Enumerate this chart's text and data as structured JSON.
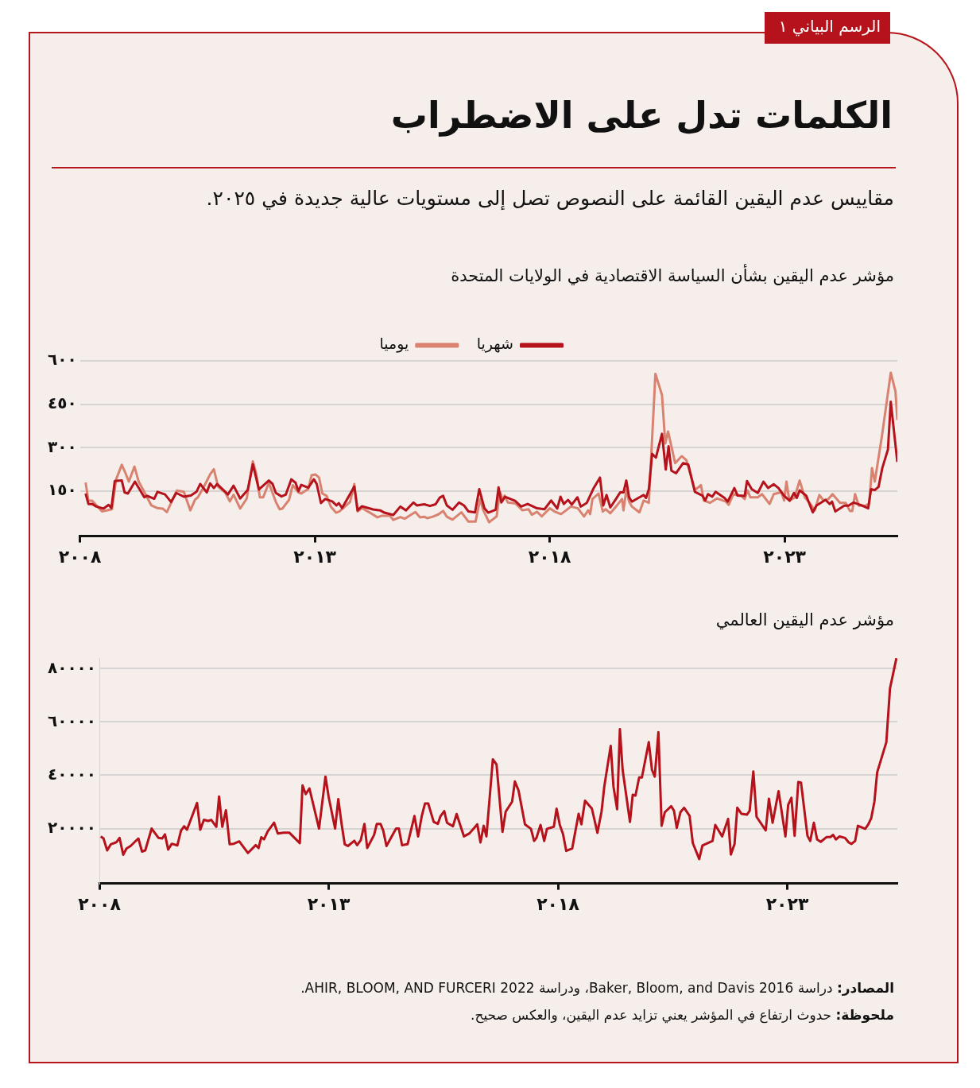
{
  "chart_data": [
    {
      "type": "line",
      "title": "الكلمات تدل على الاضطراب",
      "subtitle": "مقاييس عدم اليقين القائمة على النصوص تصل إلى مستويات عالية جديدة في ٢٠٢٥.",
      "annotations": [
        "الرسم البياني ١",
        "مؤشر عدم اليقين بشأن السياسة الاقتصادية في الولايات المتحدة"
      ],
      "xlim": [
        2008,
        2025.4
      ],
      "xticks": [
        {
          "value": 2008,
          "label": "٢٠٠٨"
        },
        {
          "value": 2013,
          "label": "٢٠١٣"
        },
        {
          "value": 2018,
          "label": "٢٠١٨"
        },
        {
          "value": 2023,
          "label": "٢٠٢٣"
        }
      ],
      "ylim": [
        -5,
        600
      ],
      "yticks": [
        {
          "value": 150,
          "label": "١٥٠"
        },
        {
          "value": 300,
          "label": "٣٠٠"
        },
        {
          "value": 450,
          "label": "٤٥٠"
        },
        {
          "value": 600,
          "label": "٦٠٠"
        }
      ],
      "grid": "y",
      "legend": "top",
      "series": [
        {
          "name": "شهريا",
          "color": "#b5121b",
          "x": [
            2008.12,
            2008.18,
            2008.26,
            2008.35,
            2008.5,
            2008.61,
            2008.67,
            2008.74,
            2008.89,
            2008.95,
            2009.02,
            2009.17,
            2009.37,
            2009.43,
            2009.58,
            2009.65,
            2009.81,
            2009.94,
            2010.05,
            2010.21,
            2010.36,
            2010.48,
            2010.56,
            2010.7,
            2010.77,
            2010.85,
            2010.92,
            2011.15,
            2011.27,
            2011.41,
            2011.57,
            2011.68,
            2011.81,
            2012.02,
            2012.1,
            2012.17,
            2012.29,
            2012.38,
            2012.5,
            2012.59,
            2012.65,
            2012.71,
            2012.86,
            2012.98,
            2013.04,
            2013.13,
            2013.22,
            2013.37,
            2013.46,
            2013.51,
            2013.58,
            2013.84,
            2013.91,
            2014.0,
            2014.24,
            2014.39,
            2014.48,
            2014.67,
            2014.82,
            2014.94,
            2015.1,
            2015.17,
            2015.33,
            2015.45,
            2015.57,
            2015.66,
            2015.73,
            2015.81,
            2015.93,
            2016.07,
            2016.18,
            2016.27,
            2016.41,
            2016.5,
            2016.61,
            2016.69,
            2016.85,
            2016.91,
            2016.97,
            2017.05,
            2017.27,
            2017.39,
            2017.53,
            2017.73,
            2017.89,
            2018.03,
            2018.16,
            2018.23,
            2018.3,
            2018.39,
            2018.47,
            2018.59,
            2018.66,
            2018.79,
            2018.93,
            2019.07,
            2019.14,
            2019.21,
            2019.29,
            2019.41,
            2019.5,
            2019.57,
            2019.63,
            2019.69,
            2019.75,
            2019.91,
            2020.0,
            2020.05,
            2020.11,
            2020.18,
            2020.26,
            2020.39,
            2020.47,
            2020.53,
            2020.59,
            2020.69,
            2020.84,
            2020.95,
            2021.09,
            2021.25,
            2021.31,
            2021.37,
            2021.46,
            2021.53,
            2021.72,
            2021.79,
            2021.93,
            2022.0,
            2022.15,
            2022.2,
            2022.3,
            2022.43,
            2022.55,
            2022.65,
            2022.77,
            2022.87,
            2022.99,
            2023.11,
            2023.2,
            2023.26,
            2023.32,
            2023.46,
            2023.6,
            2023.68,
            2023.87,
            2023.96,
            2024.01,
            2024.08,
            2024.27,
            2024.36,
            2024.47,
            2024.64,
            2024.78,
            2024.84,
            2024.92,
            2025.0,
            2025.08,
            2025.2,
            2025.26,
            2025.4
          ],
          "values": [
            142,
            106,
            106,
            97,
            90,
            103,
            92,
            185,
            187,
            146,
            142,
            183,
            129,
            134,
            124,
            148,
            139,
            113,
            144,
            131,
            135,
            148,
            175,
            146,
            177,
            161,
            175,
            139,
            169,
            125,
            154,
            243,
            156,
            187,
            175,
            144,
            132,
            138,
            191,
            179,
            150,
            172,
            162,
            191,
            175,
            109,
            123,
            115,
            101,
            109,
            92,
            166,
            84,
            98,
            87,
            84,
            76,
            68,
            97,
            84,
            111,
            101,
            105,
            99,
            105,
            128,
            134,
            101,
            86,
            111,
            100,
            80,
            77,
            157,
            91,
            76,
            86,
            163,
            111,
            131,
            116,
            97,
            106,
            91,
            88,
            118,
            90,
            131,
            106,
            120,
            104,
            129,
            97,
            110,
            159,
            197,
            101,
            137,
            94,
            123,
            146,
            146,
            187,
            129,
            114,
            129,
            137,
            127,
            157,
            279,
            266,
            348,
            225,
            305,
            221,
            212,
            247,
            242,
            148,
            135,
            118,
            140,
            131,
            148,
            127,
            114,
            161,
            135,
            134,
            185,
            157,
            144,
            183,
            161,
            174,
            161,
            134,
            117,
            144,
            127,
            153,
            135,
            77,
            101,
            120,
            106,
            114,
            80,
            100,
            100,
            111,
            101,
            91,
            157,
            154,
            165,
            230,
            294,
            459,
            251
          ]
        },
        {
          "name": "يوميا",
          "color": "#d98270",
          "x": [
            2008.12,
            2008.18,
            2008.26,
            2008.47,
            2008.68,
            2008.77,
            2008.89,
            2008.96,
            2009.04,
            2009.16,
            2009.25,
            2009.4,
            2009.52,
            2009.64,
            2009.76,
            2009.85,
            2010.06,
            2010.21,
            2010.35,
            2010.45,
            2010.51,
            2010.64,
            2010.77,
            2010.85,
            2010.94,
            2011.09,
            2011.19,
            2011.27,
            2011.41,
            2011.55,
            2011.68,
            2011.75,
            2011.83,
            2011.9,
            2012.02,
            2012.17,
            2012.25,
            2012.31,
            2012.45,
            2012.53,
            2012.65,
            2012.71,
            2012.86,
            2012.93,
            2013.01,
            2013.09,
            2013.16,
            2013.25,
            2013.34,
            2013.45,
            2013.52,
            2013.64,
            2013.75,
            2013.84,
            2013.91,
            2014.0,
            2014.15,
            2014.33,
            2014.42,
            2014.6,
            2014.67,
            2014.82,
            2014.91,
            2015.14,
            2015.24,
            2015.33,
            2015.39,
            2015.51,
            2015.63,
            2015.73,
            2015.81,
            2015.93,
            2016.12,
            2016.27,
            2016.42,
            2016.52,
            2016.58,
            2016.71,
            2016.87,
            2016.94,
            2017.0,
            2017.04,
            2017.11,
            2017.27,
            2017.42,
            2017.55,
            2017.62,
            2017.73,
            2017.83,
            2018.0,
            2018.1,
            2018.24,
            2018.35,
            2018.45,
            2018.6,
            2018.73,
            2018.82,
            2018.86,
            2018.91,
            2019.04,
            2019.13,
            2019.19,
            2019.29,
            2019.41,
            2019.54,
            2019.57,
            2019.63,
            2019.69,
            2019.75,
            2019.91,
            2020.0,
            2020.11,
            2020.25,
            2020.39,
            2020.46,
            2020.52,
            2020.67,
            2020.81,
            2020.91,
            2021.09,
            2021.22,
            2021.28,
            2021.41,
            2021.56,
            2021.75,
            2021.81,
            2021.91,
            2022.08,
            2022.15,
            2022.21,
            2022.27,
            2022.43,
            2022.52,
            2022.68,
            2022.77,
            2022.93,
            2022.99,
            2023.04,
            2023.1,
            2023.21,
            2023.32,
            2023.43,
            2023.55,
            2023.64,
            2023.74,
            2023.83,
            2023.93,
            2024.02,
            2024.18,
            2024.3,
            2024.39,
            2024.44,
            2024.5,
            2024.58,
            2024.73,
            2024.8,
            2024.86,
            2024.92,
            2025.08,
            2025.26,
            2025.36,
            2025.4
          ],
          "values": [
            180,
            117,
            117,
            80,
            88,
            191,
            241,
            216,
            183,
            235,
            183,
            138,
            101,
            92,
            90,
            78,
            152,
            148,
            84,
            121,
            129,
            166,
            208,
            226,
            166,
            146,
            115,
            138,
            90,
            125,
            253,
            212,
            129,
            129,
            179,
            113,
            88,
            90,
            120,
            171,
            146,
            142,
            158,
            205,
            208,
            197,
            142,
            134,
            97,
            76,
            80,
            97,
            113,
            175,
            80,
            92,
            78,
            60,
            65,
            65,
            51,
            61,
            55,
            78,
            60,
            62,
            57,
            62,
            70,
            82,
            62,
            52,
            77,
            45,
            45,
            123,
            86,
            43,
            63,
            148,
            120,
            135,
            111,
            108,
            84,
            88,
            69,
            79,
            63,
            91,
            80,
            71,
            84,
            97,
            91,
            63,
            84,
            71,
            123,
            142,
            80,
            88,
            74,
            97,
            123,
            84,
            154,
            114,
            97,
            77,
            118,
            110,
            555,
            482,
            315,
            356,
            247,
            271,
            257,
            154,
            171,
            118,
            110,
            125,
            114,
            103,
            140,
            134,
            123,
            153,
            129,
            129,
            140,
            106,
            140,
            147,
            118,
            183,
            118,
            127,
            187,
            129,
            106,
            84,
            137,
            118,
            123,
            140,
            110,
            110,
            82,
            82,
            140,
            100,
            100,
            108,
            230,
            183,
            349,
            559,
            495,
            396
          ]
        }
      ]
    },
    {
      "type": "line",
      "title": "مؤشر عدم اليقين العالمي",
      "annotations": [
        "المصادر: دراسة Baker, Bloom, and Davis 2016، ودراسة AHIR, BLOOM, AND FURCERI 2022.",
        "ملحوظة: حدوث ارتفاع في المؤشر يعني تزايد عدم اليقين، والعكس صحيح."
      ],
      "xlim": [
        2008,
        2025.4
      ],
      "xticks": [
        {
          "value": 2008,
          "label": "٢٠٠٨"
        },
        {
          "value": 2013,
          "label": "٢٠١٣"
        },
        {
          "value": 2018,
          "label": "٢٠١٨"
        },
        {
          "value": 2023,
          "label": "٢٠٢٣"
        }
      ],
      "ylim": [
        -600,
        84000
      ],
      "yticks": [
        {
          "value": 20000,
          "label": "٢٠٠٠٠"
        },
        {
          "value": 40000,
          "label": "٤٠٠٠٠"
        },
        {
          "value": 60000,
          "label": "٦٠٠٠٠"
        },
        {
          "value": 80000,
          "label": "٨٠٠٠٠"
        }
      ],
      "grid": "y",
      "series": [
        {
          "color": "#b5121b",
          "x": [
            2008.03,
            2008.09,
            2008.17,
            2008.25,
            2008.37,
            2008.44,
            2008.52,
            2008.59,
            2008.68,
            2008.85,
            2008.93,
            2009.0,
            2009.14,
            2009.29,
            2009.37,
            2009.43,
            2009.5,
            2009.58,
            2009.7,
            2009.78,
            2009.85,
            2009.91,
            2010.13,
            2010.2,
            2010.28,
            2010.37,
            2010.44,
            2010.55,
            2010.61,
            2010.68,
            2010.76,
            2010.84,
            2010.93,
            2011.05,
            2011.24,
            2011.41,
            2011.47,
            2011.53,
            2011.59,
            2011.67,
            2011.81,
            2011.89,
            2012.02,
            2012.14,
            2012.37,
            2012.43,
            2012.5,
            2012.58,
            2012.79,
            2012.93,
            2013.0,
            2013.14,
            2013.21,
            2013.28,
            2013.35,
            2013.42,
            2013.56,
            2013.62,
            2013.7,
            2013.78,
            2013.84,
            2013.99,
            2014.05,
            2014.13,
            2014.19,
            2014.26,
            2014.47,
            2014.53,
            2014.6,
            2014.72,
            2014.87,
            2014.95,
            2015.03,
            2015.1,
            2015.17,
            2015.29,
            2015.38,
            2015.44,
            2015.52,
            2015.58,
            2015.71,
            2015.79,
            2015.95,
            2016.07,
            2016.24,
            2016.31,
            2016.38,
            2016.44,
            2016.58,
            2016.66,
            2016.79,
            2016.86,
            2017.0,
            2017.06,
            2017.14,
            2017.28,
            2017.41,
            2017.48,
            2017.53,
            2017.62,
            2017.7,
            2017.76,
            2017.91,
            2017.97,
            2018.04,
            2018.11,
            2018.18,
            2018.31,
            2018.45,
            2018.51,
            2018.59,
            2018.74,
            2018.86,
            2018.95,
            2019.01,
            2019.15,
            2019.21,
            2019.29,
            2019.35,
            2019.41,
            2019.57,
            2019.63,
            2019.69,
            2019.77,
            2019.83,
            2019.98,
            2020.05,
            2020.11,
            2020.19,
            2020.26,
            2020.33,
            2020.47,
            2020.53,
            2020.59,
            2020.67,
            2020.75,
            2020.87,
            2020.94,
            2021.08,
            2021.15,
            2021.37,
            2021.43,
            2021.58,
            2021.71,
            2021.77,
            2021.85,
            2021.91,
            2022.0,
            2022.12,
            2022.18,
            2022.26,
            2022.33,
            2022.53,
            2022.6,
            2022.68,
            2022.81,
            2022.96,
            2023.02,
            2023.09,
            2023.16,
            2023.24,
            2023.3,
            2023.44,
            2023.5,
            2023.58,
            2023.65,
            2023.73,
            2023.86,
            2023.94,
            2024.0,
            2024.06,
            2024.14,
            2024.26,
            2024.34,
            2024.4,
            2024.48,
            2024.54,
            2024.7,
            2024.76,
            2024.83,
            2024.9,
            2024.96,
            2025.16,
            2025.24,
            2025.38
          ],
          "values": [
            17050,
            16280,
            11800,
            14100,
            14860,
            16500,
            10160,
            12460,
            13440,
            16280,
            11360,
            11800,
            20000,
            16500,
            16280,
            17800,
            12130,
            14300,
            13660,
            19230,
            20870,
            19560,
            29620,
            19560,
            23280,
            22840,
            23280,
            20660,
            32020,
            20660,
            26890,
            14100,
            14300,
            15190,
            10820,
            13770,
            12680,
            16720,
            15950,
            18910,
            22190,
            18140,
            18470,
            18470,
            14540,
            36180,
            32900,
            35080,
            20000,
            39460,
            31800,
            20000,
            31040,
            21970,
            14100,
            13440,
            15410,
            13770,
            15630,
            21750,
            12680,
            17600,
            21750,
            21750,
            19230,
            13440,
            20000,
            20000,
            13770,
            14100,
            24700,
            17050,
            24700,
            29400,
            29400,
            22510,
            21750,
            24700,
            26560,
            22190,
            20870,
            25470,
            17050,
            18190,
            21590,
            14780,
            21020,
            17050,
            45970,
            44040,
            18750,
            26350,
            30090,
            37690,
            34290,
            21590,
            19890,
            15350,
            16480,
            21360,
            15350,
            19890,
            20680,
            27480,
            21360,
            17960,
            11610,
            12520,
            25560,
            21590,
            30430,
            27480,
            18410,
            26350,
            35760,
            51070,
            35760,
            27260,
            57310,
            42000,
            22490,
            32700,
            32360,
            39160,
            39160,
            52430,
            42000,
            39500,
            56170,
            21020,
            26120,
            28390,
            26690,
            20230,
            26120,
            27820,
            24760,
            14560,
            8550,
            13650,
            15350,
            21360,
            17050,
            23630,
            10250,
            14220,
            27820,
            25560,
            25220,
            26690,
            41430,
            24420,
            19320,
            31230,
            22150,
            34060,
            17050,
            28960,
            31570,
            17280,
            37460,
            37240,
            17280,
            15350,
            22150,
            15920,
            15010,
            16820,
            16820,
            17620,
            15920,
            17050,
            16480,
            14780,
            14220,
            15350,
            21020,
            19890,
            21360,
            23860,
            30090,
            41090,
            52430,
            72620,
            83960
          ]
        }
      ]
    }
  ]
}
